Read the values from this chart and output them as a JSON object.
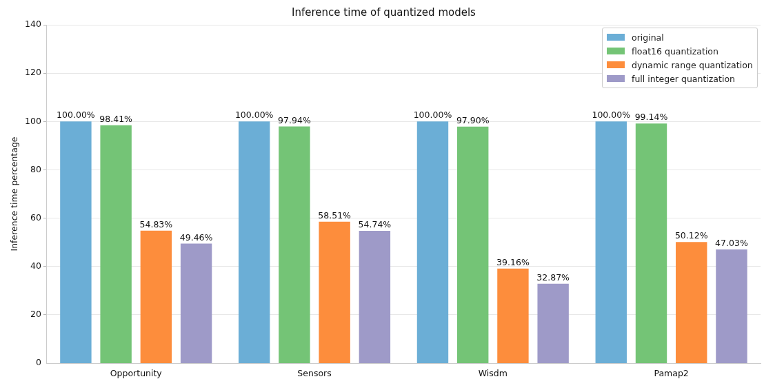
{
  "chart_data": {
    "type": "bar",
    "title": "Inference time of quantized models",
    "ylabel": "Inference time percentage",
    "categories": [
      "Opportunity",
      "Sensors",
      "Wisdm",
      "Pamap2"
    ],
    "series": [
      {
        "name": "original",
        "color": "#6baed6",
        "values": [
          100.0,
          100.0,
          100.0,
          100.0
        ],
        "value_labels": [
          "100.00%",
          "100.00%",
          "100.00%",
          "100.00%"
        ]
      },
      {
        "name": "float16 quantization",
        "color": "#74c476",
        "values": [
          98.41,
          97.94,
          97.9,
          99.14
        ],
        "value_labels": [
          "98.41%",
          "97.94%",
          "97.90%",
          "99.14%"
        ]
      },
      {
        "name": "dynamic range quantization",
        "color": "#fd8d3c",
        "values": [
          54.83,
          58.51,
          39.16,
          50.12
        ],
        "value_labels": [
          "54.83%",
          "58.51%",
          "39.16%",
          "50.12%"
        ]
      },
      {
        "name": "full integer quantization",
        "color": "#9e9ac8",
        "values": [
          49.46,
          54.74,
          32.87,
          47.03
        ],
        "value_labels": [
          "49.46%",
          "54.74%",
          "32.87%",
          "47.03%"
        ]
      }
    ],
    "ylim": [
      0,
      140
    ],
    "yticks": [
      0,
      20,
      40,
      60,
      80,
      100,
      120,
      140
    ],
    "grid": "y",
    "legend": "top right"
  }
}
